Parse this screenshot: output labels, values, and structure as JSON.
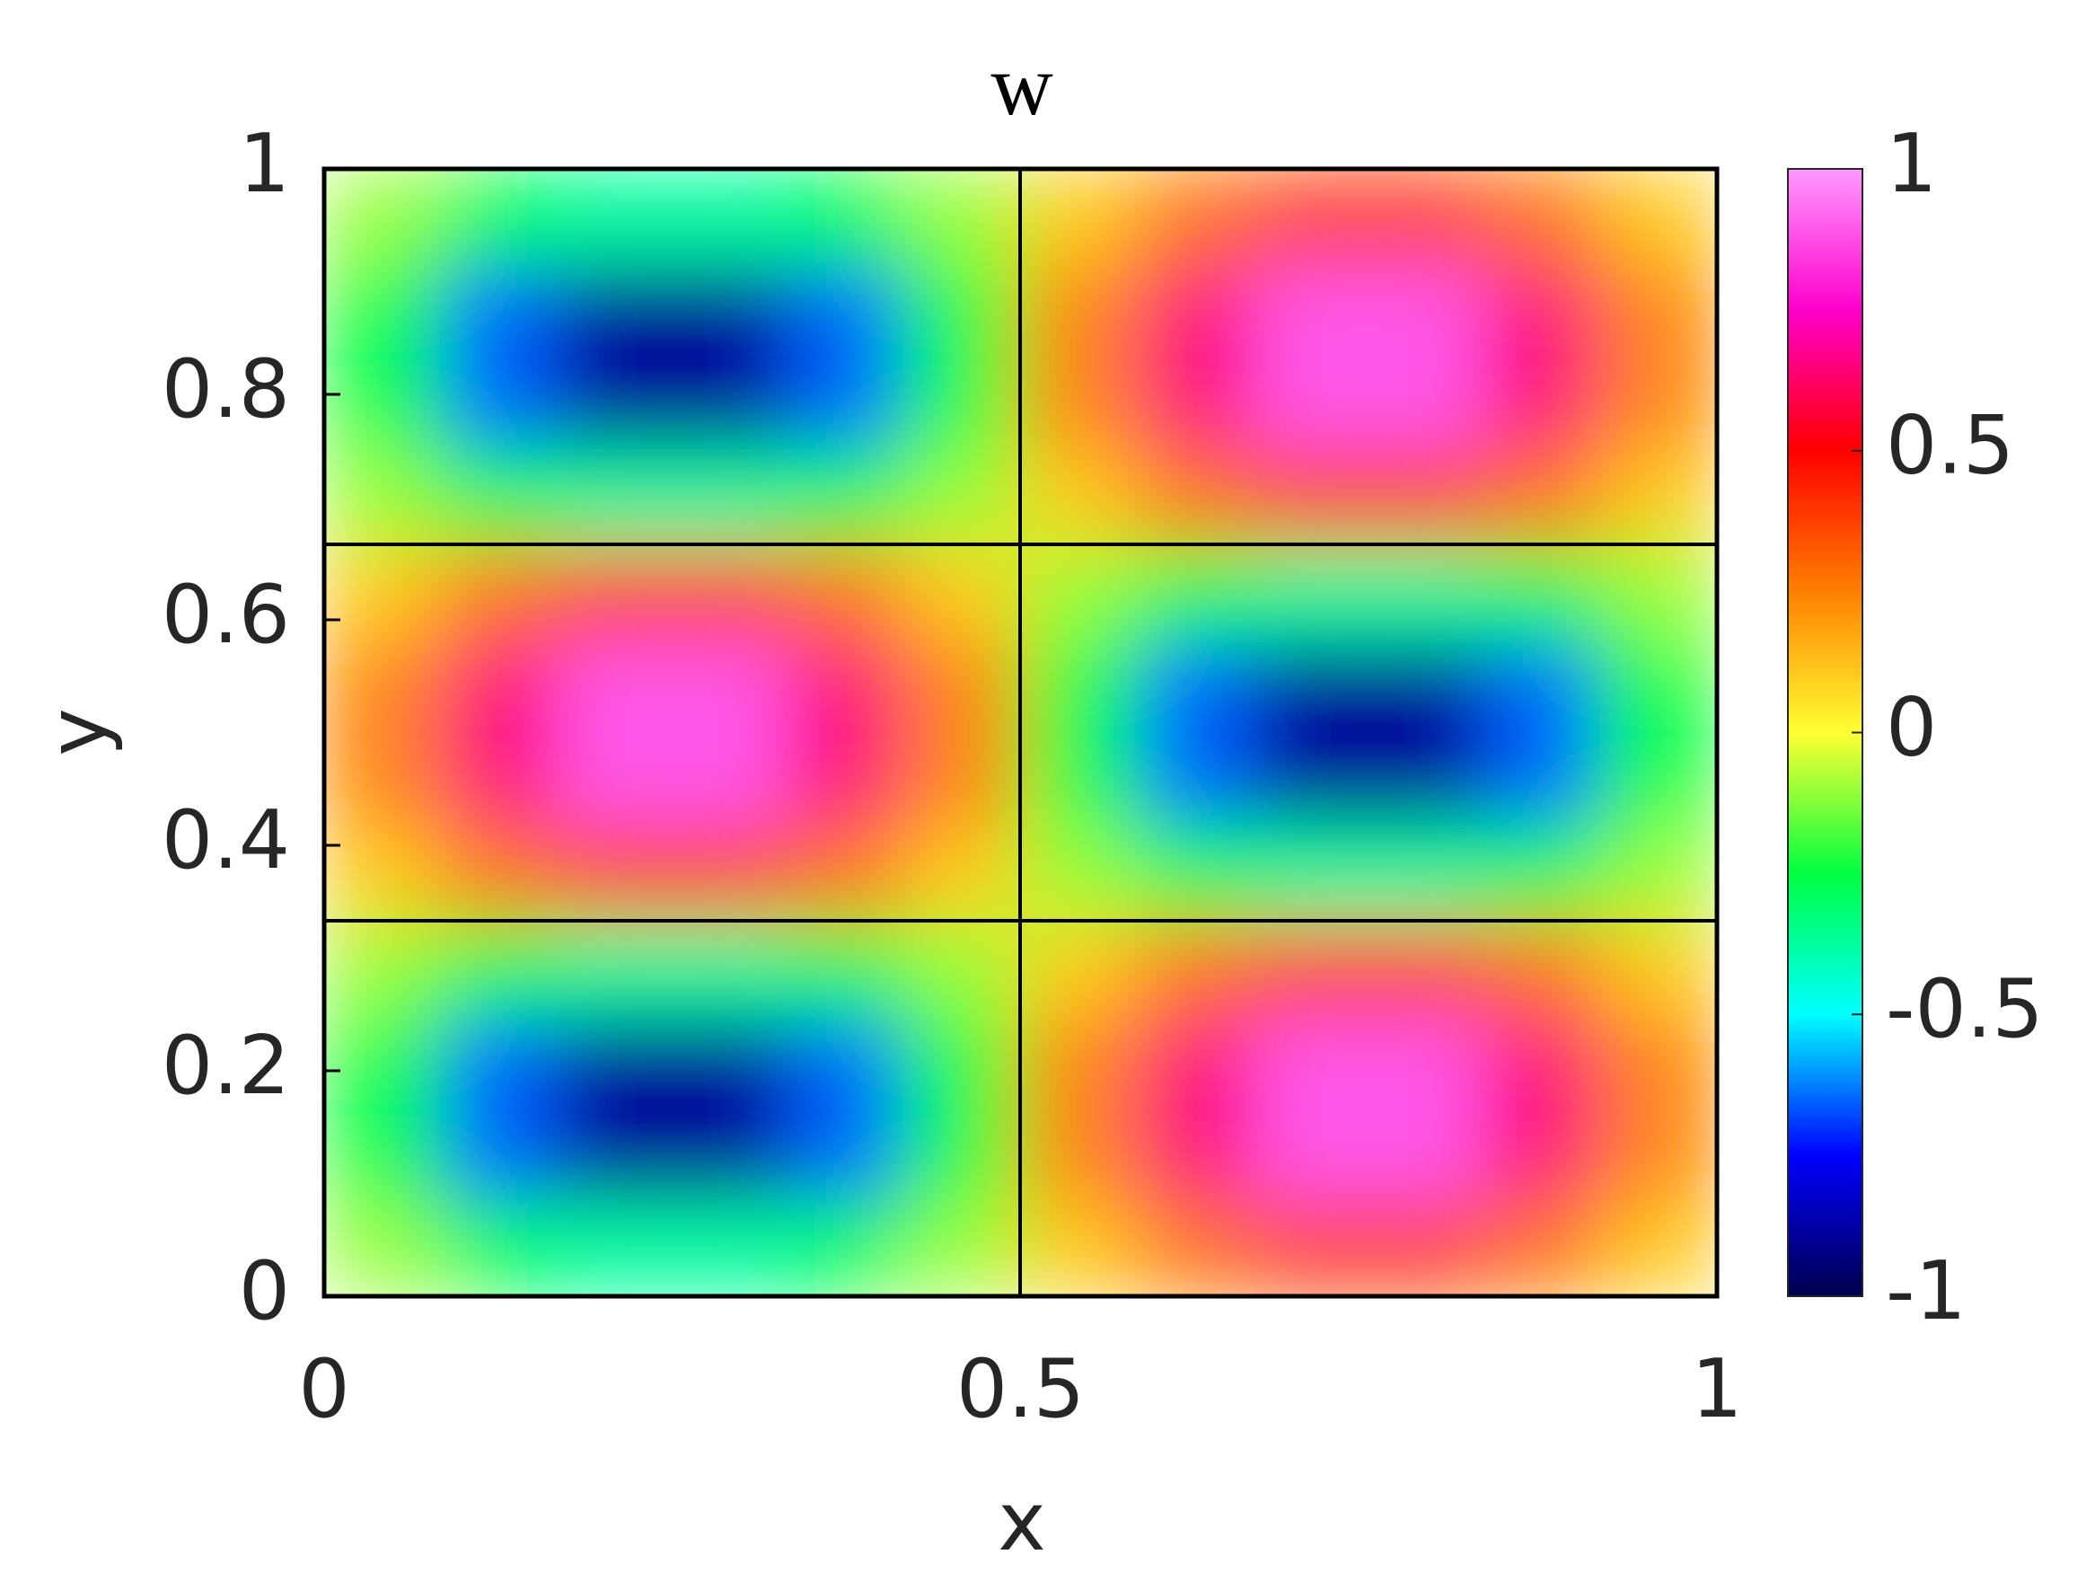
{
  "chart_data": {
    "type": "heatmap",
    "title": "w",
    "xlabel": "x",
    "ylabel": "y",
    "x": [
      0.0417,
      0.125,
      0.2083,
      0.2917,
      0.375,
      0.4583,
      0.5417,
      0.625,
      0.7083,
      0.7917,
      0.875,
      0.9583
    ],
    "y": [
      0.0417,
      0.125,
      0.2083,
      0.2917,
      0.375,
      0.4583,
      0.5417,
      0.625,
      0.7083,
      0.7917,
      0.875,
      0.9583
    ],
    "z": [
      [
        -0.1,
        -0.27,
        -0.37,
        -0.37,
        -0.27,
        -0.1,
        0.1,
        0.27,
        0.37,
        0.37,
        0.27,
        0.1
      ],
      [
        -0.24,
        -0.65,
        -0.89,
        -0.89,
        -0.65,
        -0.24,
        0.24,
        0.65,
        0.89,
        0.89,
        0.65,
        0.24
      ],
      [
        -0.24,
        -0.65,
        -0.89,
        -0.89,
        -0.65,
        -0.24,
        0.24,
        0.65,
        0.89,
        0.89,
        0.65,
        0.24
      ],
      [
        -0.1,
        -0.27,
        -0.37,
        -0.37,
        -0.27,
        -0.1,
        0.1,
        0.27,
        0.37,
        0.37,
        0.27,
        0.1
      ],
      [
        0.1,
        0.27,
        0.37,
        0.37,
        0.27,
        0.1,
        -0.1,
        -0.27,
        -0.37,
        -0.37,
        -0.27,
        -0.1
      ],
      [
        0.24,
        0.65,
        0.89,
        0.89,
        0.65,
        0.24,
        -0.24,
        -0.65,
        -0.89,
        -0.89,
        -0.65,
        -0.24
      ],
      [
        0.24,
        0.65,
        0.89,
        0.89,
        0.65,
        0.24,
        -0.24,
        -0.65,
        -0.89,
        -0.89,
        -0.65,
        -0.24
      ],
      [
        0.1,
        0.27,
        0.37,
        0.37,
        0.27,
        0.1,
        -0.1,
        -0.27,
        -0.37,
        -0.37,
        -0.27,
        -0.1
      ],
      [
        -0.1,
        -0.27,
        -0.37,
        -0.37,
        -0.27,
        -0.1,
        0.1,
        0.27,
        0.37,
        0.37,
        0.27,
        0.1
      ],
      [
        -0.24,
        -0.65,
        -0.89,
        -0.89,
        -0.65,
        -0.24,
        0.24,
        0.65,
        0.89,
        0.89,
        0.65,
        0.24
      ],
      [
        -0.24,
        -0.65,
        -0.89,
        -0.89,
        -0.65,
        -0.24,
        0.24,
        0.65,
        0.89,
        0.89,
        0.65,
        0.24
      ],
      [
        -0.1,
        -0.27,
        -0.37,
        -0.37,
        -0.27,
        -0.1,
        0.1,
        0.27,
        0.37,
        0.37,
        0.27,
        0.1
      ]
    ],
    "xlim": [
      0,
      1
    ],
    "ylim": [
      0,
      1
    ],
    "xticks": [
      0,
      0.5,
      1
    ],
    "yticks": [
      0,
      0.2,
      0.4,
      0.6,
      0.8,
      1
    ],
    "clim": [
      -1,
      1
    ],
    "cticks": [
      -1,
      -0.5,
      0,
      0.5,
      1
    ],
    "colormap": [
      "#00004d",
      "#0000ff",
      "#00ffff",
      "#00ff40",
      "#ffff33",
      "#ff8000",
      "#ff0000",
      "#ff00cc",
      "#ff99ff"
    ]
  }
}
